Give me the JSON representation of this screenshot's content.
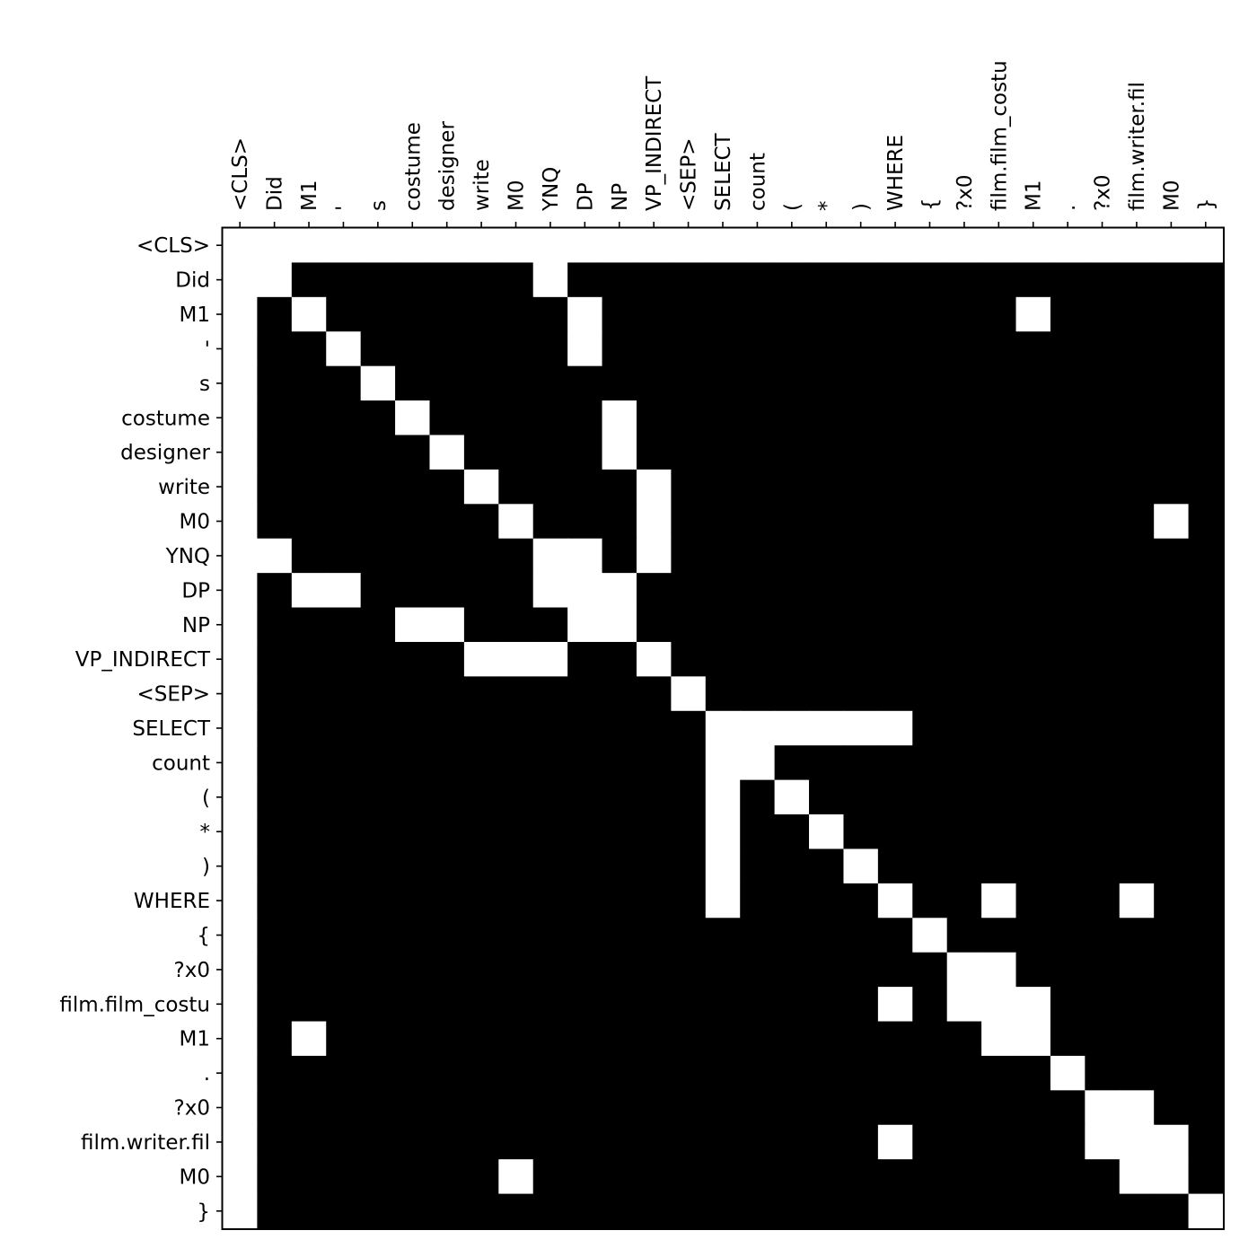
{
  "chart_data": {
    "type": "heatmap",
    "title": "",
    "xlabel": "",
    "ylabel": "",
    "x_axis_position": "top",
    "x_tick_rotation": "vertical",
    "colormap": {
      "0": "#000000",
      "1": "#ffffff"
    },
    "grid": false,
    "legend": "none",
    "x_labels": [
      "<CLS>",
      "Did",
      "M1",
      "'",
      "s",
      "costume",
      "designer",
      "write",
      "M0",
      "YNQ",
      "DP",
      "NP",
      "VP_INDIRECT",
      "<SEP>",
      "SELECT",
      "count",
      "(",
      "*",
      ")",
      "WHERE",
      "{",
      "?x0",
      "film.film_costu",
      "M1",
      ".",
      "?x0",
      "film.writer.fil",
      "M0",
      "}"
    ],
    "y_labels": [
      "<CLS>",
      "Did",
      "M1",
      "'",
      "s",
      "costume",
      "designer",
      "write",
      "M0",
      "YNQ",
      "DP",
      "NP",
      "VP_INDIRECT",
      "<SEP>",
      "SELECT",
      "count",
      "(",
      "*",
      ")",
      "WHERE",
      "{",
      "?x0",
      "film.film_costu",
      "M1",
      ".",
      "?x0",
      "film.writer.fil",
      "M0",
      "}"
    ],
    "matrix": [
      [
        1,
        1,
        1,
        1,
        1,
        1,
        1,
        1,
        1,
        1,
        1,
        1,
        1,
        1,
        1,
        1,
        1,
        1,
        1,
        1,
        1,
        1,
        1,
        1,
        1,
        1,
        1,
        1,
        1
      ],
      [
        1,
        1,
        0,
        0,
        0,
        0,
        0,
        0,
        0,
        1,
        0,
        0,
        0,
        0,
        0,
        0,
        0,
        0,
        0,
        0,
        0,
        0,
        0,
        0,
        0,
        0,
        0,
        0,
        0
      ],
      [
        1,
        0,
        1,
        0,
        0,
        0,
        0,
        0,
        0,
        0,
        1,
        0,
        0,
        0,
        0,
        0,
        0,
        0,
        0,
        0,
        0,
        0,
        0,
        1,
        0,
        0,
        0,
        0,
        0
      ],
      [
        1,
        0,
        0,
        1,
        0,
        0,
        0,
        0,
        0,
        0,
        1,
        0,
        0,
        0,
        0,
        0,
        0,
        0,
        0,
        0,
        0,
        0,
        0,
        0,
        0,
        0,
        0,
        0,
        0
      ],
      [
        1,
        0,
        0,
        0,
        1,
        0,
        0,
        0,
        0,
        0,
        0,
        0,
        0,
        0,
        0,
        0,
        0,
        0,
        0,
        0,
        0,
        0,
        0,
        0,
        0,
        0,
        0,
        0,
        0
      ],
      [
        1,
        0,
        0,
        0,
        0,
        1,
        0,
        0,
        0,
        0,
        0,
        1,
        0,
        0,
        0,
        0,
        0,
        0,
        0,
        0,
        0,
        0,
        0,
        0,
        0,
        0,
        0,
        0,
        0
      ],
      [
        1,
        0,
        0,
        0,
        0,
        0,
        1,
        0,
        0,
        0,
        0,
        1,
        0,
        0,
        0,
        0,
        0,
        0,
        0,
        0,
        0,
        0,
        0,
        0,
        0,
        0,
        0,
        0,
        0
      ],
      [
        1,
        0,
        0,
        0,
        0,
        0,
        0,
        1,
        0,
        0,
        0,
        0,
        1,
        0,
        0,
        0,
        0,
        0,
        0,
        0,
        0,
        0,
        0,
        0,
        0,
        0,
        0,
        0,
        0
      ],
      [
        1,
        0,
        0,
        0,
        0,
        0,
        0,
        0,
        1,
        0,
        0,
        0,
        1,
        0,
        0,
        0,
        0,
        0,
        0,
        0,
        0,
        0,
        0,
        0,
        0,
        0,
        0,
        1,
        0
      ],
      [
        1,
        1,
        0,
        0,
        0,
        0,
        0,
        0,
        0,
        1,
        1,
        0,
        1,
        0,
        0,
        0,
        0,
        0,
        0,
        0,
        0,
        0,
        0,
        0,
        0,
        0,
        0,
        0,
        0
      ],
      [
        1,
        0,
        1,
        1,
        0,
        0,
        0,
        0,
        0,
        1,
        1,
        1,
        0,
        0,
        0,
        0,
        0,
        0,
        0,
        0,
        0,
        0,
        0,
        0,
        0,
        0,
        0,
        0,
        0
      ],
      [
        1,
        0,
        0,
        0,
        0,
        1,
        1,
        0,
        0,
        0,
        1,
        1,
        0,
        0,
        0,
        0,
        0,
        0,
        0,
        0,
        0,
        0,
        0,
        0,
        0,
        0,
        0,
        0,
        0
      ],
      [
        1,
        0,
        0,
        0,
        0,
        0,
        0,
        1,
        1,
        1,
        0,
        0,
        1,
        0,
        0,
        0,
        0,
        0,
        0,
        0,
        0,
        0,
        0,
        0,
        0,
        0,
        0,
        0,
        0
      ],
      [
        1,
        0,
        0,
        0,
        0,
        0,
        0,
        0,
        0,
        0,
        0,
        0,
        0,
        1,
        0,
        0,
        0,
        0,
        0,
        0,
        0,
        0,
        0,
        0,
        0,
        0,
        0,
        0,
        0
      ],
      [
        1,
        0,
        0,
        0,
        0,
        0,
        0,
        0,
        0,
        0,
        0,
        0,
        0,
        0,
        1,
        1,
        1,
        1,
        1,
        1,
        0,
        0,
        0,
        0,
        0,
        0,
        0,
        0,
        0
      ],
      [
        1,
        0,
        0,
        0,
        0,
        0,
        0,
        0,
        0,
        0,
        0,
        0,
        0,
        0,
        1,
        1,
        0,
        0,
        0,
        0,
        0,
        0,
        0,
        0,
        0,
        0,
        0,
        0,
        0
      ],
      [
        1,
        0,
        0,
        0,
        0,
        0,
        0,
        0,
        0,
        0,
        0,
        0,
        0,
        0,
        1,
        0,
        1,
        0,
        0,
        0,
        0,
        0,
        0,
        0,
        0,
        0,
        0,
        0,
        0
      ],
      [
        1,
        0,
        0,
        0,
        0,
        0,
        0,
        0,
        0,
        0,
        0,
        0,
        0,
        0,
        1,
        0,
        0,
        1,
        0,
        0,
        0,
        0,
        0,
        0,
        0,
        0,
        0,
        0,
        0
      ],
      [
        1,
        0,
        0,
        0,
        0,
        0,
        0,
        0,
        0,
        0,
        0,
        0,
        0,
        0,
        1,
        0,
        0,
        0,
        1,
        0,
        0,
        0,
        0,
        0,
        0,
        0,
        0,
        0,
        0
      ],
      [
        1,
        0,
        0,
        0,
        0,
        0,
        0,
        0,
        0,
        0,
        0,
        0,
        0,
        0,
        1,
        0,
        0,
        0,
        0,
        1,
        0,
        0,
        1,
        0,
        0,
        0,
        1,
        0,
        0
      ],
      [
        1,
        0,
        0,
        0,
        0,
        0,
        0,
        0,
        0,
        0,
        0,
        0,
        0,
        0,
        0,
        0,
        0,
        0,
        0,
        0,
        1,
        0,
        0,
        0,
        0,
        0,
        0,
        0,
        0
      ],
      [
        1,
        0,
        0,
        0,
        0,
        0,
        0,
        0,
        0,
        0,
        0,
        0,
        0,
        0,
        0,
        0,
        0,
        0,
        0,
        0,
        0,
        1,
        1,
        0,
        0,
        0,
        0,
        0,
        0
      ],
      [
        1,
        0,
        0,
        0,
        0,
        0,
        0,
        0,
        0,
        0,
        0,
        0,
        0,
        0,
        0,
        0,
        0,
        0,
        0,
        1,
        0,
        1,
        1,
        1,
        0,
        0,
        0,
        0,
        0
      ],
      [
        1,
        0,
        1,
        0,
        0,
        0,
        0,
        0,
        0,
        0,
        0,
        0,
        0,
        0,
        0,
        0,
        0,
        0,
        0,
        0,
        0,
        0,
        1,
        1,
        0,
        0,
        0,
        0,
        0
      ],
      [
        1,
        0,
        0,
        0,
        0,
        0,
        0,
        0,
        0,
        0,
        0,
        0,
        0,
        0,
        0,
        0,
        0,
        0,
        0,
        0,
        0,
        0,
        0,
        0,
        1,
        0,
        0,
        0,
        0
      ],
      [
        1,
        0,
        0,
        0,
        0,
        0,
        0,
        0,
        0,
        0,
        0,
        0,
        0,
        0,
        0,
        0,
        0,
        0,
        0,
        0,
        0,
        0,
        0,
        0,
        0,
        1,
        1,
        0,
        0
      ],
      [
        1,
        0,
        0,
        0,
        0,
        0,
        0,
        0,
        0,
        0,
        0,
        0,
        0,
        0,
        0,
        0,
        0,
        0,
        0,
        1,
        0,
        0,
        0,
        0,
        0,
        1,
        1,
        1,
        0
      ],
      [
        1,
        0,
        0,
        0,
        0,
        0,
        0,
        0,
        1,
        0,
        0,
        0,
        0,
        0,
        0,
        0,
        0,
        0,
        0,
        0,
        0,
        0,
        0,
        0,
        0,
        0,
        1,
        1,
        0
      ],
      [
        1,
        0,
        0,
        0,
        0,
        0,
        0,
        0,
        0,
        0,
        0,
        0,
        0,
        0,
        0,
        0,
        0,
        0,
        0,
        0,
        0,
        0,
        0,
        0,
        0,
        0,
        0,
        0,
        1
      ]
    ]
  }
}
